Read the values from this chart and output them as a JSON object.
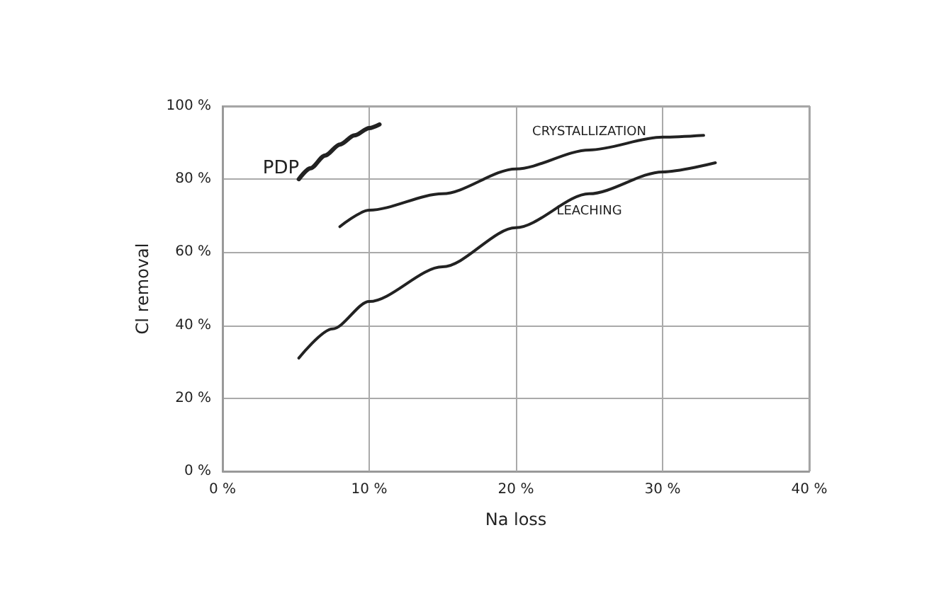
{
  "chart_data": {
    "type": "line",
    "xlabel": "Na loss",
    "ylabel": "Cl removal",
    "xlim": [
      0,
      40
    ],
    "xticks": [
      {
        "value": 0,
        "label": "0 %"
      },
      {
        "value": 10,
        "label": "10 %"
      },
      {
        "value": 20,
        "label": "20 %"
      },
      {
        "value": 30,
        "label": "30 %"
      },
      {
        "value": 40,
        "label": "40 %"
      }
    ],
    "ylim": [
      0,
      100
    ],
    "yticks": [
      {
        "value": 0,
        "label": "0 %"
      },
      {
        "value": 20,
        "label": "20 %"
      },
      {
        "value": 40,
        "label": "40 %"
      },
      {
        "value": 60,
        "label": "60 %"
      },
      {
        "value": 80,
        "label": "80 %"
      },
      {
        "value": 100,
        "label": "100 %"
      }
    ],
    "grid": true,
    "legend": false,
    "marker": "none",
    "line_style": "solid",
    "series": [
      {
        "name": "PDP",
        "color": "#222222",
        "x": [
          5.2,
          6,
          7,
          8,
          9,
          10,
          10.7
        ],
        "values": [
          80,
          83,
          86.5,
          89.5,
          92,
          94,
          95
        ]
      },
      {
        "name": "CRYSTALLIZATION",
        "color": "#222222",
        "x": [
          8,
          10,
          15,
          20,
          25,
          30,
          32.8
        ],
        "values": [
          67,
          71.5,
          76,
          82.8,
          88,
          91.5,
          92
        ]
      },
      {
        "name": "LEACHING",
        "color": "#222222",
        "x": [
          5.2,
          7.5,
          10,
          15,
          20,
          25,
          30,
          33.6
        ],
        "values": [
          31,
          39,
          46.5,
          56,
          66.7,
          76,
          82,
          84.5
        ]
      }
    ]
  }
}
